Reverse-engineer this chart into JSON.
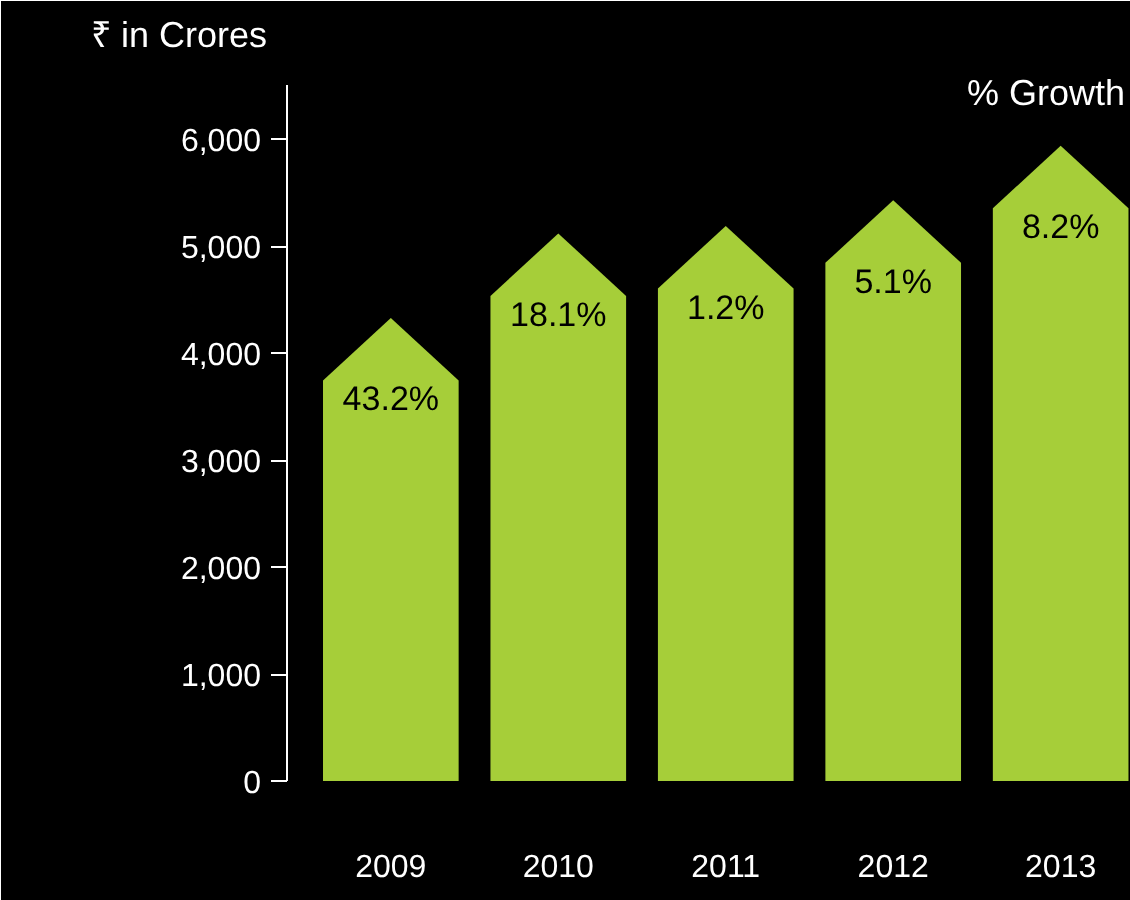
{
  "chart_data": {
    "type": "bar",
    "ylabel": "₹ in Crores",
    "annotations": [
      "% Growth",
      {
        "text": "43.2%",
        "x": "2009",
        "y": 4330
      },
      {
        "text": "18.1%",
        "x": "2010",
        "y": 5120
      },
      {
        "text": "1.2%",
        "x": "2011",
        "y": 5190
      },
      {
        "text": "5.1%",
        "x": "2012",
        "y": 5430
      },
      {
        "text": "8.2%",
        "x": "2013",
        "y": 5940
      }
    ],
    "categories": [
      "2009",
      "2010",
      "2011",
      "2012",
      "2013"
    ],
    "values": [
      4330,
      5120,
      5190,
      5430,
      5940
    ],
    "color": "#a6ce39",
    "ylim": [
      0,
      6500
    ],
    "yticks": [
      0,
      {
        "value": 1000,
        "label": "1,000"
      },
      {
        "value": 2000,
        "label": "2,000"
      },
      {
        "value": 3000,
        "label": "3,000"
      },
      {
        "value": 4000,
        "label": "4,000"
      },
      {
        "value": 5000,
        "label": "5,000"
      },
      {
        "value": 6000,
        "label": "6,000"
      }
    ],
    "grid": false
  }
}
